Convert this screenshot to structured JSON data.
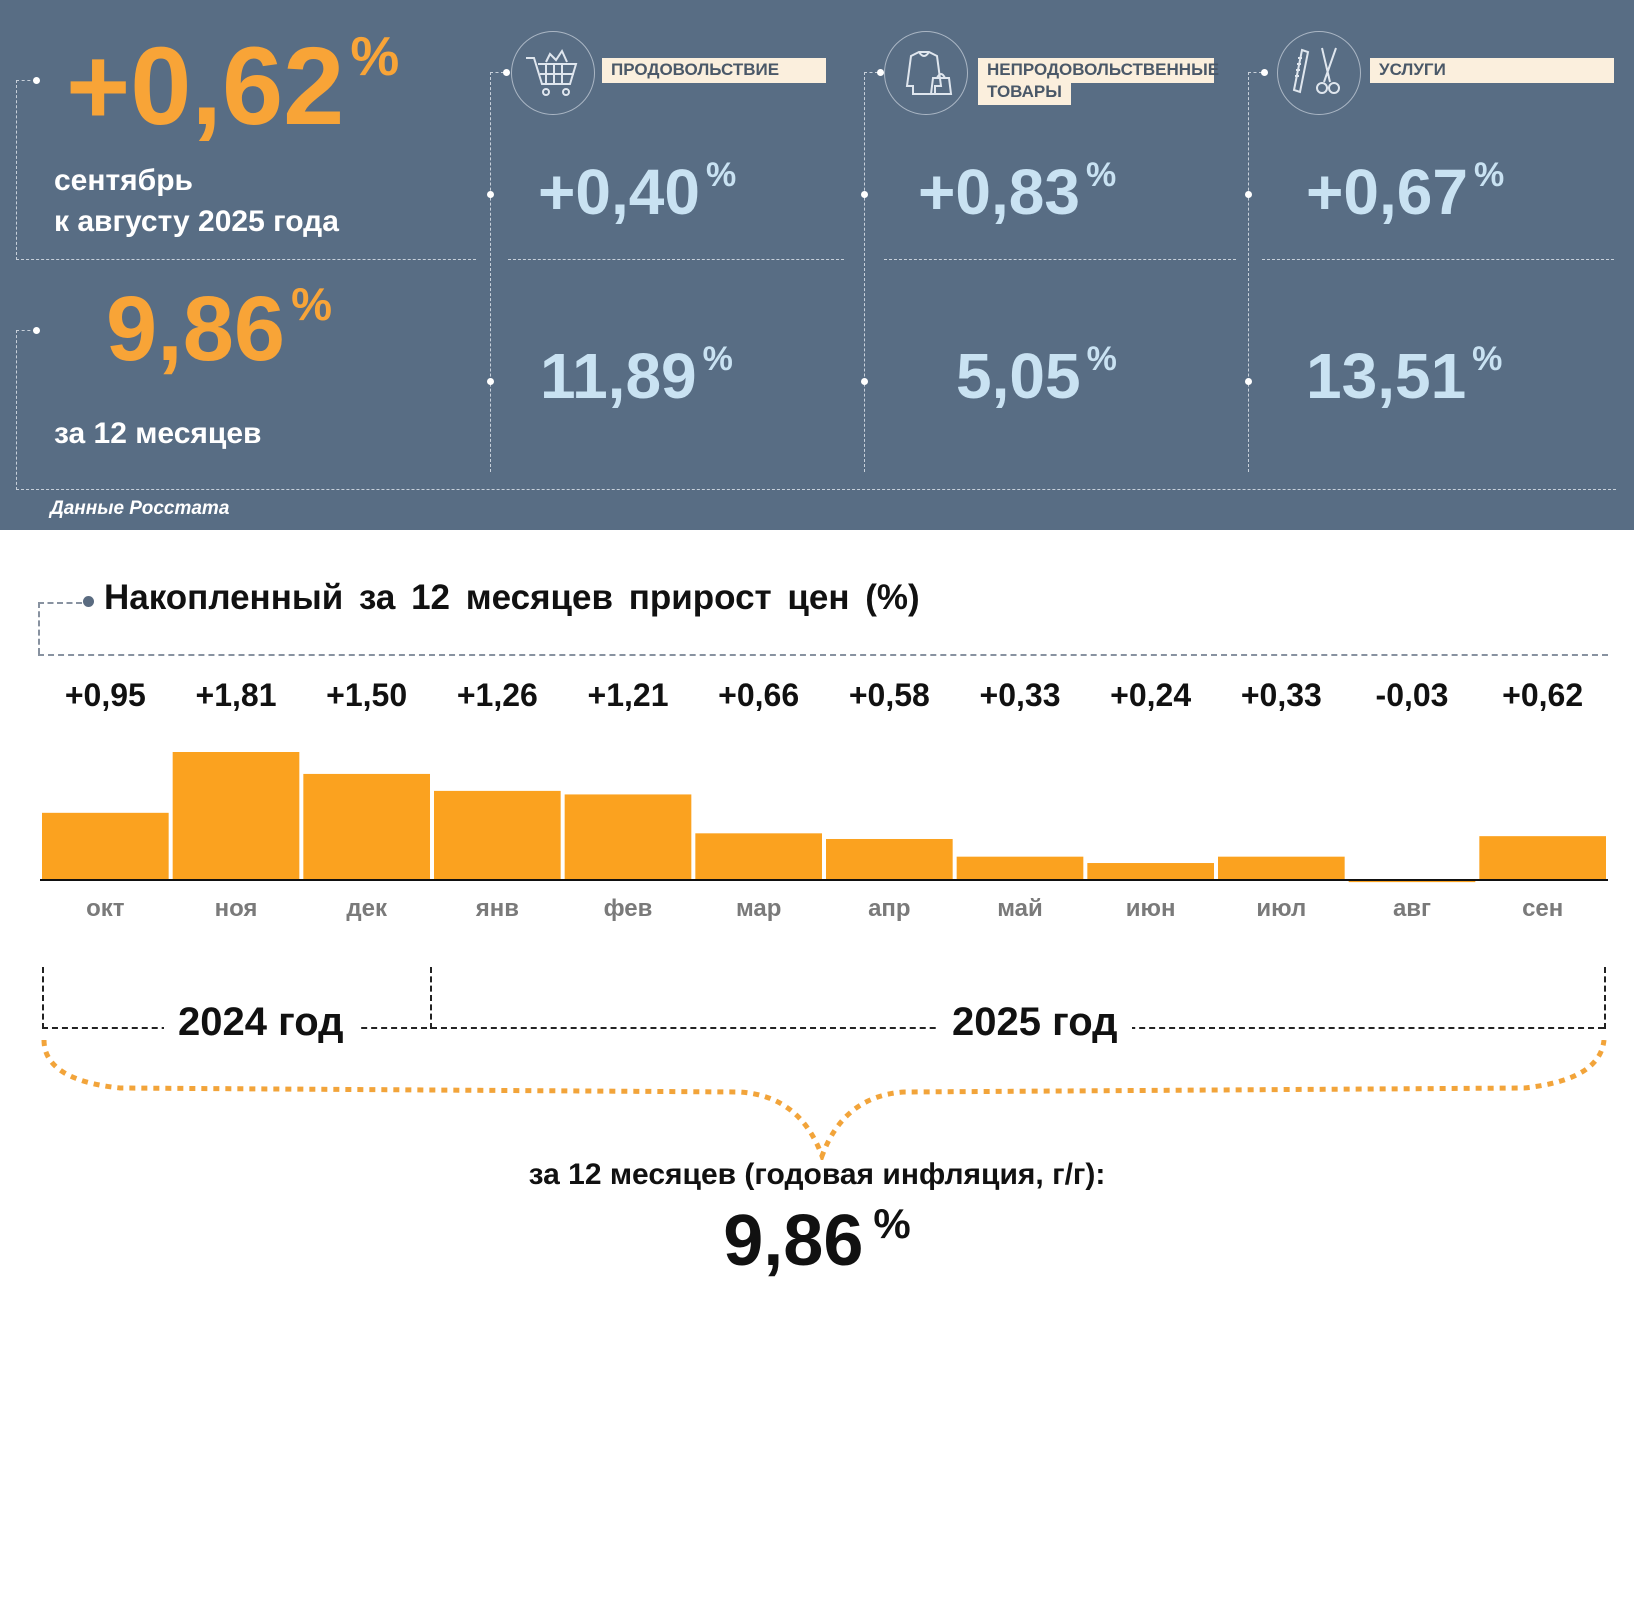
{
  "monthly": {
    "value": "+0,62",
    "unit": "%",
    "label_line1": "сентябрь",
    "label_line2": "к августу 2025 года"
  },
  "annual": {
    "value": "9,86",
    "unit": "%",
    "label": "за 12 месяцев"
  },
  "categories": [
    {
      "name": "ПРОДОВОЛЬСТВИЕ",
      "name2": "",
      "icon": "shopping-cart-icon",
      "monthly": "+0,40",
      "annual": "11,89",
      "unit": "%"
    },
    {
      "name": "НЕПРОДОВОЛЬСТВЕННЫЕ",
      "name2": "ТОВАРЫ",
      "icon": "clothing-icon",
      "monthly": "+0,83",
      "annual": "5,05",
      "unit": "%"
    },
    {
      "name": "УСЛУГИ",
      "name2": "",
      "icon": "scissors-comb-icon",
      "monthly": "+0,67",
      "annual": "13,51",
      "unit": "%"
    }
  ],
  "source": "Данные Росстата",
  "colors": {
    "panel": "#586d84",
    "accent": "#f8a437",
    "bar": "#fba21f",
    "value_light": "#c9e2f2",
    "label_bg": "#fbefdd"
  },
  "chart_data": {
    "type": "bar",
    "title": "Накопленный за 12 месяцев прирост цен (%)",
    "categories": [
      "окт",
      "ноя",
      "дек",
      "янв",
      "фев",
      "мар",
      "апр",
      "май",
      "июн",
      "июл",
      "авг",
      "сен"
    ],
    "values": [
      0.95,
      1.81,
      1.5,
      1.26,
      1.21,
      0.66,
      0.58,
      0.33,
      0.24,
      0.33,
      -0.03,
      0.62
    ],
    "value_labels": [
      "+0,95",
      "+1,81",
      "+1,50",
      "+1,26",
      "+1,21",
      "+0,66",
      "+0,58",
      "+0,33",
      "+0,24",
      "+0,33",
      "-0,03",
      "+0,62"
    ],
    "years": [
      {
        "label": "2024 год",
        "from": 0,
        "to": 2
      },
      {
        "label": "2025 год",
        "from": 3,
        "to": 11
      }
    ],
    "summary_label": "за 12 месяцев (годовая инфляция, г/г):",
    "summary_value": "9,86",
    "summary_unit": "%",
    "grid": false
  }
}
